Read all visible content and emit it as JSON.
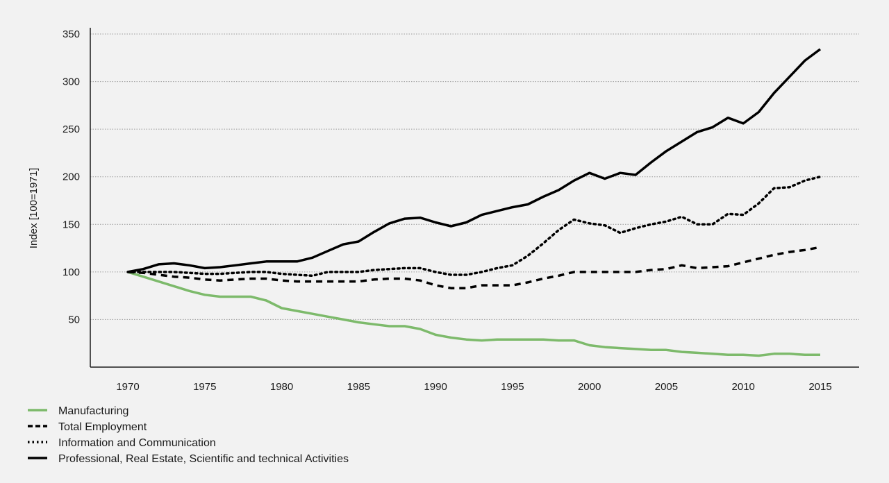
{
  "chart_data": {
    "type": "line",
    "title": "",
    "xlabel": "",
    "ylabel": "Index [100=1971]",
    "xlim": [
      1970,
      2015
    ],
    "ylim": [
      0,
      350
    ],
    "grid": true,
    "legend_position": "bottom-left",
    "x_ticks": [
      1970,
      1975,
      1980,
      1985,
      1990,
      1995,
      2000,
      2005,
      2010,
      2015
    ],
    "y_ticks": [
      50,
      100,
      150,
      200,
      250,
      300,
      350
    ],
    "x": [
      1970,
      1971,
      1972,
      1973,
      1974,
      1975,
      1976,
      1977,
      1978,
      1979,
      1980,
      1981,
      1982,
      1983,
      1984,
      1985,
      1986,
      1987,
      1988,
      1989,
      1990,
      1991,
      1992,
      1993,
      1994,
      1995,
      1996,
      1997,
      1998,
      1999,
      2000,
      2001,
      2002,
      2003,
      2004,
      2005,
      2006,
      2007,
      2008,
      2009,
      2010,
      2011,
      2012,
      2013,
      2014,
      2015
    ],
    "series": [
      {
        "name": "Manufacturing",
        "style": "solid",
        "color": "#7dba6b",
        "values": [
          100,
          95,
          90,
          85,
          80,
          76,
          74,
          74,
          74,
          70,
          62,
          59,
          56,
          53,
          50,
          47,
          45,
          43,
          43,
          40,
          34,
          31,
          29,
          28,
          29,
          29,
          29,
          29,
          28,
          28,
          23,
          21,
          20,
          19,
          18,
          18,
          16,
          15,
          14,
          13,
          13,
          12,
          14,
          14,
          13,
          13
        ]
      },
      {
        "name": "Total Employment",
        "style": "dashed",
        "color": "#000000",
        "values": [
          100,
          99,
          97,
          95,
          94,
          92,
          91,
          92,
          93,
          93,
          91,
          90,
          90,
          90,
          90,
          90,
          92,
          93,
          93,
          91,
          86,
          83,
          83,
          86,
          86,
          86,
          89,
          93,
          96,
          100,
          100,
          100,
          100,
          100,
          102,
          103,
          107,
          104,
          105,
          106,
          110,
          114,
          118,
          121,
          123,
          126
        ]
      },
      {
        "name": "Information and Communication",
        "style": "dotted",
        "color": "#000000",
        "values": [
          100,
          100,
          100,
          100,
          99,
          98,
          98,
          99,
          100,
          100,
          98,
          97,
          96,
          100,
          100,
          100,
          102,
          103,
          104,
          104,
          100,
          97,
          97,
          100,
          104,
          107,
          117,
          130,
          144,
          155,
          151,
          149,
          141,
          146,
          150,
          153,
          158,
          150,
          150,
          161,
          160,
          172,
          188,
          189,
          196,
          200
        ]
      },
      {
        "name": "Professional, Real Estate, Scientific and technical Activities",
        "style": "solid",
        "color": "#000000",
        "values": [
          100,
          103,
          108,
          109,
          107,
          104,
          105,
          107,
          109,
          111,
          111,
          111,
          115,
          122,
          129,
          132,
          142,
          151,
          156,
          157,
          152,
          148,
          152,
          160,
          164,
          168,
          171,
          179,
          186,
          196,
          204,
          198,
          204,
          202,
          215,
          227,
          237,
          247,
          252,
          262,
          256,
          268,
          288,
          305,
          322,
          334
        ]
      }
    ]
  }
}
